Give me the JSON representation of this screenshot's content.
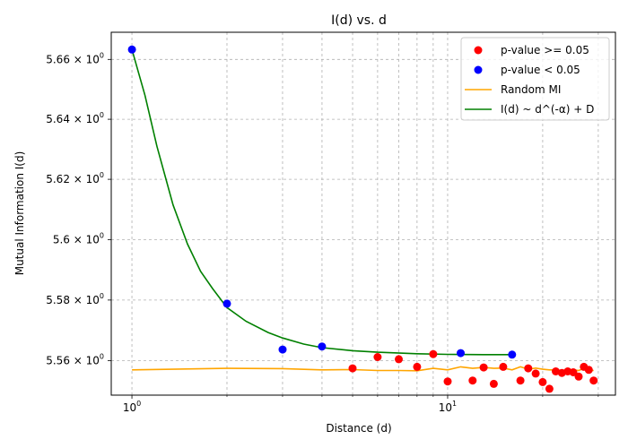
{
  "chart_data": {
    "type": "scatter",
    "title": "I(d) vs. d",
    "xlabel": "Distance (d)",
    "ylabel": "Mutual Information I(d)",
    "xscale": "log",
    "yscale": "log",
    "xlim": [
      0.86,
      34
    ],
    "ylim": [
      5.5487,
      5.6691
    ],
    "grid": true,
    "grid_style": "dashed",
    "legend_position": "top-right",
    "x_tick_labels": [
      {
        "value": 1,
        "base": "10",
        "exp": "0"
      },
      {
        "value": 10,
        "base": "10",
        "exp": "1"
      }
    ],
    "y_tick_labels": [
      {
        "value": 5.56,
        "base": "5.56 × 10",
        "exp": "0"
      },
      {
        "value": 5.58,
        "base": "5.58 × 10",
        "exp": "0"
      },
      {
        "value": 5.6,
        "base": "5.6 × 10",
        "exp": "0"
      },
      {
        "value": 5.62,
        "base": "5.62 × 10",
        "exp": "0"
      },
      {
        "value": 5.64,
        "base": "5.64 × 10",
        "exp": "0"
      },
      {
        "value": 5.66,
        "base": "5.66 × 10",
        "exp": "0"
      }
    ],
    "series": [
      {
        "name": "p-value >= 0.05",
        "kind": "scatter",
        "color": "#ff0000",
        "points": [
          [
            5,
            5.5575
          ],
          [
            6,
            5.5612
          ],
          [
            7,
            5.5605
          ],
          [
            8,
            5.558
          ],
          [
            9,
            5.5622
          ],
          [
            10,
            5.5532
          ],
          [
            12,
            5.5535
          ],
          [
            13,
            5.5578
          ],
          [
            14,
            5.5524
          ],
          [
            15,
            5.558
          ],
          [
            17,
            5.5535
          ],
          [
            18,
            5.5575
          ],
          [
            19,
            5.5558
          ],
          [
            20,
            5.553
          ],
          [
            21,
            5.5508
          ],
          [
            22,
            5.5565
          ],
          [
            23,
            5.556
          ],
          [
            24,
            5.5565
          ],
          [
            25,
            5.5562
          ],
          [
            26,
            5.5548
          ],
          [
            27,
            5.558
          ],
          [
            28,
            5.557
          ],
          [
            29,
            5.5535
          ]
        ]
      },
      {
        "name": "p-value < 0.05",
        "kind": "scatter",
        "color": "#0000ff",
        "points": [
          [
            1,
            5.6633
          ],
          [
            2,
            5.5788
          ],
          [
            3,
            5.5637
          ],
          [
            4,
            5.5647
          ],
          [
            11,
            5.5625
          ],
          [
            16,
            5.562
          ]
        ]
      },
      {
        "name": "Random MI",
        "kind": "line",
        "color": "#ffa500",
        "points": [
          [
            1,
            5.557
          ],
          [
            2,
            5.5575
          ],
          [
            3,
            5.5574
          ],
          [
            4,
            5.557
          ],
          [
            5,
            5.5571
          ],
          [
            6,
            5.5568
          ],
          [
            7,
            5.5568
          ],
          [
            8,
            5.5567
          ],
          [
            9,
            5.5575
          ],
          [
            10,
            5.557
          ],
          [
            11,
            5.558
          ],
          [
            12,
            5.5575
          ],
          [
            13,
            5.5578
          ],
          [
            14,
            5.5575
          ],
          [
            15,
            5.5576
          ],
          [
            16,
            5.557
          ],
          [
            17,
            5.558
          ],
          [
            18,
            5.5572
          ],
          [
            19,
            5.5576
          ],
          [
            20,
            5.5572
          ],
          [
            21,
            5.557
          ],
          [
            22,
            5.557
          ],
          [
            23,
            5.5568
          ],
          [
            24,
            5.5571
          ],
          [
            25,
            5.557
          ],
          [
            26,
            5.5568
          ],
          [
            27,
            5.5575
          ],
          [
            28,
            5.5569
          ],
          [
            29,
            5.5568
          ]
        ]
      },
      {
        "name": "I(d) ~ d^(-α) + D",
        "kind": "line",
        "color": "#008000",
        "points": [
          [
            1.0,
            5.6633
          ],
          [
            1.1,
            5.648
          ],
          [
            1.2,
            5.631
          ],
          [
            1.35,
            5.6115
          ],
          [
            1.5,
            5.5985
          ],
          [
            1.65,
            5.5895
          ],
          [
            1.8,
            5.5838
          ],
          [
            2.0,
            5.5775
          ],
          [
            2.3,
            5.573
          ],
          [
            2.7,
            5.5693
          ],
          [
            3.0,
            5.5675
          ],
          [
            3.5,
            5.5655
          ],
          [
            4.0,
            5.5643
          ],
          [
            5.0,
            5.5633
          ],
          [
            6.0,
            5.5628
          ],
          [
            8.0,
            5.5623
          ],
          [
            10.0,
            5.5621
          ],
          [
            13.0,
            5.562
          ],
          [
            16.0,
            5.562
          ]
        ]
      }
    ]
  },
  "legend": {
    "entries": [
      {
        "label": "p-value >= 0.05",
        "kind": "marker",
        "color": "#ff0000"
      },
      {
        "label": "p-value < 0.05",
        "kind": "marker",
        "color": "#0000ff"
      },
      {
        "label": "Random MI",
        "kind": "line",
        "color": "#ffa500"
      },
      {
        "label": "I(d) ~ d^(-α) + D",
        "kind": "line",
        "color": "#008000"
      }
    ]
  }
}
